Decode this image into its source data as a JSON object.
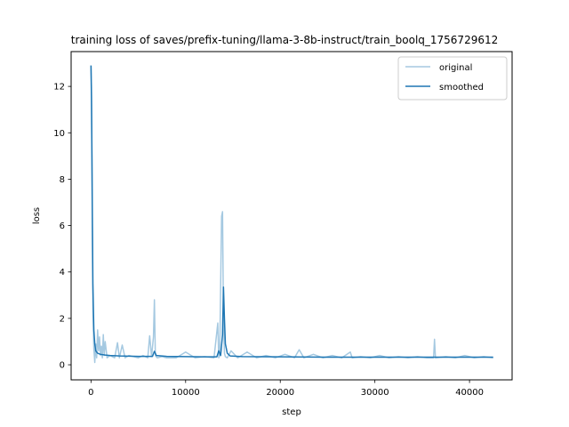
{
  "chart_data": {
    "type": "line",
    "title": "training loss of saves/prefix-tuning/llama-3-8b-instruct/train_boolq_1756729612",
    "xlabel": "step",
    "ylabel": "loss",
    "xlim": [
      -2100,
      44500
    ],
    "ylim": [
      -0.65,
      13.5
    ],
    "xticks": [
      0,
      10000,
      20000,
      30000,
      40000
    ],
    "yticks": [
      0,
      2,
      4,
      6,
      8,
      10,
      12
    ],
    "grid": false,
    "legend_position": "top-right",
    "series": [
      {
        "name": "original",
        "color": "#1f77b4",
        "opacity": 0.4,
        "x": [
          0,
          50,
          100,
          150,
          200,
          300,
          400,
          500,
          600,
          700,
          800,
          900,
          1000,
          1100,
          1200,
          1300,
          1400,
          1500,
          1700,
          2000,
          2500,
          2800,
          3000,
          3300,
          3600,
          4000,
          4500,
          5000,
          5500,
          6000,
          6200,
          6400,
          6600,
          6700,
          6800,
          7000,
          7500,
          8000,
          9000,
          10000,
          11000,
          12000,
          13000,
          13400,
          13500,
          13600,
          13800,
          13900,
          14000,
          14100,
          14200,
          14400,
          14800,
          15500,
          16500,
          17500,
          18500,
          19500,
          20500,
          21500,
          22000,
          22500,
          23500,
          24500,
          25500,
          26500,
          27400,
          27600,
          28500,
          29500,
          30500,
          31500,
          32500,
          33500,
          34500,
          35500,
          36200,
          36300,
          36400,
          37500,
          38500,
          39500,
          40500,
          41500,
          42500
        ],
        "values": [
          12.9,
          12.0,
          8.5,
          5.2,
          2.4,
          0.7,
          0.1,
          0.9,
          0.3,
          1.5,
          0.6,
          1.2,
          0.4,
          0.8,
          0.3,
          1.3,
          0.4,
          1.0,
          0.3,
          0.4,
          0.3,
          0.95,
          0.3,
          0.85,
          0.3,
          0.4,
          0.35,
          0.3,
          0.4,
          0.3,
          1.25,
          0.35,
          1.2,
          2.8,
          0.4,
          0.3,
          0.35,
          0.3,
          0.3,
          0.55,
          0.3,
          0.35,
          0.3,
          1.8,
          0.3,
          0.4,
          6.4,
          6.6,
          2.0,
          0.5,
          0.35,
          0.3,
          0.6,
          0.3,
          0.55,
          0.3,
          0.4,
          0.3,
          0.45,
          0.3,
          0.65,
          0.3,
          0.45,
          0.3,
          0.4,
          0.3,
          0.55,
          0.3,
          0.35,
          0.3,
          0.4,
          0.3,
          0.35,
          0.3,
          0.35,
          0.3,
          0.3,
          1.1,
          0.3,
          0.35,
          0.3,
          0.4,
          0.3,
          0.35,
          0.3
        ]
      },
      {
        "name": "smoothed",
        "color": "#1f77b4",
        "opacity": 1.0,
        "x": [
          0,
          50,
          100,
          150,
          200,
          300,
          400,
          500,
          700,
          1000,
          1500,
          2000,
          3000,
          5000,
          6500,
          6700,
          6900,
          8000,
          10000,
          12000,
          13300,
          13500,
          13700,
          13900,
          14000,
          14100,
          14200,
          14400,
          14700,
          16000,
          20000,
          25000,
          30000,
          35000,
          40000,
          42500
        ],
        "values": [
          12.9,
          11.5,
          9.0,
          6.0,
          3.5,
          1.5,
          0.9,
          0.6,
          0.5,
          0.45,
          0.42,
          0.4,
          0.38,
          0.36,
          0.36,
          0.58,
          0.4,
          0.36,
          0.35,
          0.34,
          0.34,
          0.6,
          0.4,
          1.3,
          3.35,
          2.0,
          0.9,
          0.5,
          0.38,
          0.35,
          0.34,
          0.33,
          0.33,
          0.33,
          0.33,
          0.33
        ]
      }
    ]
  }
}
